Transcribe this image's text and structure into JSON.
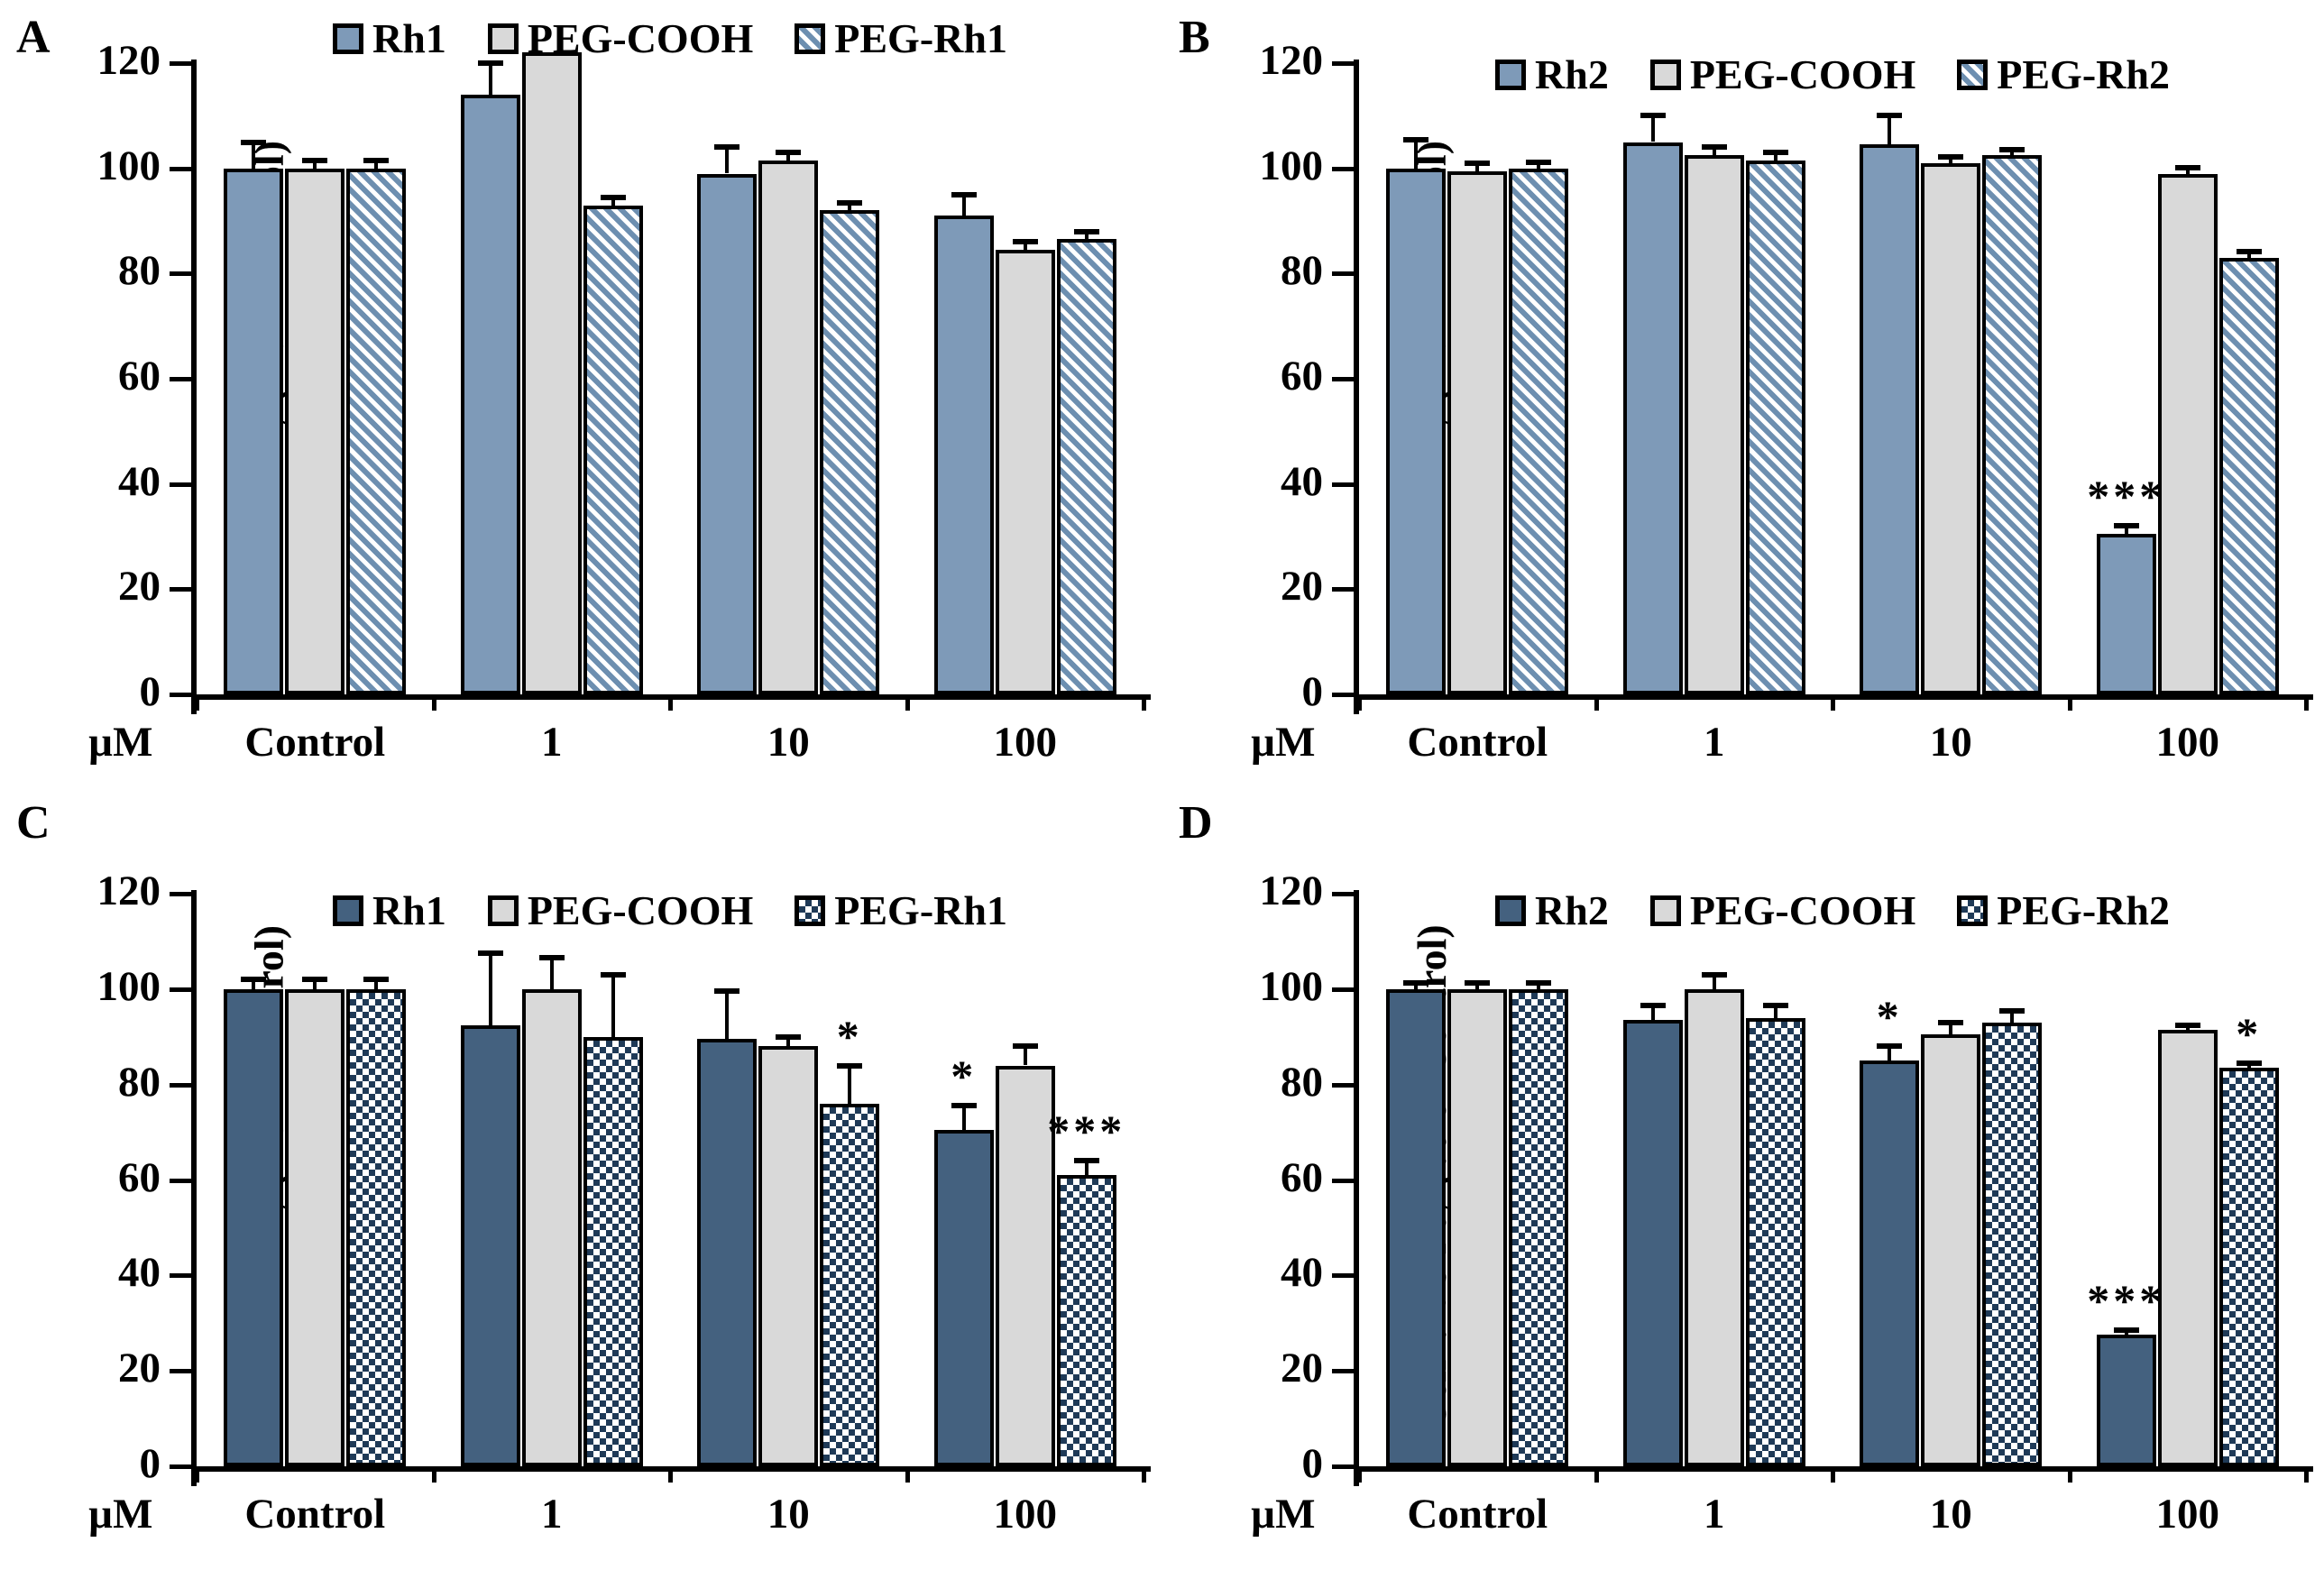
{
  "figure_title": "",
  "colors": {
    "solid_ab": "#7e9ab8",
    "solid_cd": "#44617f",
    "gray": "#d9d9d9",
    "stripe_blue": "#6d8fb0",
    "checker_navy": "#1f3a57",
    "axis": "#000000",
    "background": "#ffffff"
  },
  "chart_data": [
    {
      "type": "bar",
      "panel_label": "A",
      "ylabel": "Cell Viability ( % of control)",
      "xlabel_prefix": "µM",
      "ylim": [
        0,
        120
      ],
      "yticks": [
        0,
        20,
        40,
        60,
        80,
        100,
        120
      ],
      "categories": [
        "Control",
        "1",
        "10",
        "100"
      ],
      "legend_position": "top-center",
      "grid": false,
      "series": [
        {
          "name": "Rh1",
          "style": "solid-ab",
          "values": [
            100,
            114,
            99,
            91
          ],
          "errors": [
            5,
            6,
            5,
            4
          ],
          "sig": [
            "",
            "",
            "",
            ""
          ]
        },
        {
          "name": "PEG-COOH",
          "style": "gray",
          "values": [
            100,
            122,
            101.5,
            84.5
          ],
          "errors": [
            1.5,
            0,
            1.5,
            1.5
          ],
          "sig": [
            "",
            "",
            "",
            ""
          ]
        },
        {
          "name": "PEG-Rh1",
          "style": "stripe",
          "values": [
            100,
            93,
            92,
            86.5
          ],
          "errors": [
            1.5,
            1.5,
            1.5,
            1.5
          ],
          "sig": [
            "",
            "",
            "",
            ""
          ]
        }
      ]
    },
    {
      "type": "bar",
      "panel_label": "B",
      "ylabel": "Cell Viability ( % of control)",
      "xlabel_prefix": "µM",
      "ylim": [
        0,
        120
      ],
      "yticks": [
        0,
        20,
        40,
        60,
        80,
        100,
        120
      ],
      "categories": [
        "Control",
        "1",
        "10",
        "100"
      ],
      "legend_position": "top-center",
      "grid": false,
      "series": [
        {
          "name": "Rh2",
          "style": "solid-ab",
          "values": [
            100,
            105,
            104.5,
            30.5
          ],
          "errors": [
            5.5,
            5,
            5.5,
            1.5
          ],
          "sig": [
            "",
            "",
            "",
            "***"
          ]
        },
        {
          "name": "PEG-COOH",
          "style": "gray",
          "values": [
            99.5,
            102.5,
            101,
            99
          ],
          "errors": [
            1.5,
            1.5,
            1.2,
            1.2
          ],
          "sig": [
            "",
            "",
            "",
            ""
          ]
        },
        {
          "name": "PEG-Rh2",
          "style": "stripe",
          "values": [
            100,
            101.5,
            102.5,
            83
          ],
          "errors": [
            1.2,
            1.5,
            1,
            1.2
          ],
          "sig": [
            "",
            "",
            "",
            ""
          ]
        }
      ]
    },
    {
      "type": "bar",
      "panel_label": "C",
      "ylabel": "Cell Viability ( % of control)",
      "xlabel_prefix": "µM",
      "ylim": [
        0,
        120
      ],
      "yticks": [
        0,
        20,
        40,
        60,
        80,
        100,
        120
      ],
      "categories": [
        "Control",
        "1",
        "10",
        "100"
      ],
      "legend_position": "top-center",
      "grid": false,
      "series": [
        {
          "name": "Rh1",
          "style": "solid-cd",
          "values": [
            100,
            92.5,
            89.5,
            70.5
          ],
          "errors": [
            2,
            15,
            10,
            5
          ],
          "sig": [
            "",
            "",
            "",
            "*"
          ]
        },
        {
          "name": "PEG-COOH",
          "style": "gray",
          "values": [
            100,
            100,
            88,
            84
          ],
          "errors": [
            2,
            6.5,
            2,
            4
          ],
          "sig": [
            "",
            "",
            "",
            ""
          ]
        },
        {
          "name": "PEG-Rh1",
          "style": "checker",
          "values": [
            100,
            90,
            76,
            61
          ],
          "errors": [
            2,
            13,
            8,
            3
          ],
          "sig": [
            "",
            "",
            "*",
            "***"
          ]
        }
      ]
    },
    {
      "type": "bar",
      "panel_label": "D",
      "ylabel": "Cell Viability (% of Control)",
      "xlabel_prefix": "µM",
      "ylim": [
        0,
        120
      ],
      "yticks": [
        0,
        20,
        40,
        60,
        80,
        100,
        120
      ],
      "categories": [
        "Control",
        "1",
        "10",
        "100"
      ],
      "legend_position": "top-center",
      "grid": false,
      "series": [
        {
          "name": "Rh2",
          "style": "solid-cd",
          "values": [
            100,
            93.5,
            85,
            27.5
          ],
          "errors": [
            1.2,
            3,
            3,
            1
          ],
          "sig": [
            "",
            "",
            "*",
            "***"
          ]
        },
        {
          "name": "PEG-COOH",
          "style": "gray",
          "values": [
            100,
            100,
            90.5,
            91.5
          ],
          "errors": [
            1.2,
            3,
            2.5,
            1
          ],
          "sig": [
            "",
            "",
            "",
            ""
          ]
        },
        {
          "name": "PEG-Rh2",
          "style": "checker",
          "values": [
            100,
            94,
            93,
            83.5
          ],
          "errors": [
            1.2,
            2.5,
            2.5,
            1
          ],
          "sig": [
            "",
            "",
            "",
            "*"
          ]
        }
      ]
    }
  ]
}
